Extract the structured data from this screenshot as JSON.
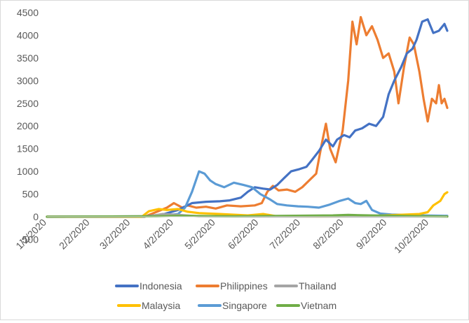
{
  "chart_data": {
    "type": "line",
    "title": "",
    "xlabel": "",
    "ylabel": "",
    "ylim": [
      -500,
      4500
    ],
    "yticks": [
      -500,
      0,
      500,
      1000,
      1500,
      2000,
      2500,
      3000,
      3500,
      4000,
      4500
    ],
    "ytick_labels": [
      "-500",
      "0",
      "500",
      "1000",
      "1500",
      "2000",
      "2500",
      "3000",
      "3500",
      "4000",
      "4500"
    ],
    "x_range": [
      "1/2/2020",
      "10/15/2020"
    ],
    "xtick_labels": [
      "1/2/2020",
      "2/2/2020",
      "3/2/2020",
      "4/2/2020",
      "5/2/2020",
      "6/2/2020",
      "7/2/2020",
      "8/2/2020",
      "9/2/2020",
      "10/2/2020"
    ],
    "grid": false,
    "legend_position": "bottom",
    "series": [
      {
        "name": "Indonesia",
        "color": "#4472C4",
        "points": [
          [
            "1/2/2020",
            0
          ],
          [
            "3/10/2020",
            0
          ],
          [
            "3/25/2020",
            50
          ],
          [
            "4/5/2020",
            150
          ],
          [
            "4/15/2020",
            300
          ],
          [
            "4/25/2020",
            330
          ],
          [
            "5/5/2020",
            340
          ],
          [
            "5/12/2020",
            360
          ],
          [
            "5/20/2020",
            420
          ],
          [
            "5/25/2020",
            550
          ],
          [
            "5/30/2020",
            650
          ],
          [
            "6/5/2020",
            620
          ],
          [
            "6/10/2020",
            600
          ],
          [
            "6/15/2020",
            700
          ],
          [
            "6/20/2020",
            850
          ],
          [
            "6/25/2020",
            1000
          ],
          [
            "7/1/2020",
            1050
          ],
          [
            "7/6/2020",
            1100
          ],
          [
            "7/10/2020",
            1250
          ],
          [
            "7/15/2020",
            1450
          ],
          [
            "7/20/2020",
            1700
          ],
          [
            "7/25/2020",
            1550
          ],
          [
            "7/28/2020",
            1700
          ],
          [
            "8/2/2020",
            1800
          ],
          [
            "8/6/2020",
            1750
          ],
          [
            "8/10/2020",
            1900
          ],
          [
            "8/15/2020",
            1950
          ],
          [
            "8/20/2020",
            2050
          ],
          [
            "8/25/2020",
            2000
          ],
          [
            "8/30/2020",
            2200
          ],
          [
            "9/3/2020",
            2700
          ],
          [
            "9/7/2020",
            3000
          ],
          [
            "9/12/2020",
            3300
          ],
          [
            "9/16/2020",
            3600
          ],
          [
            "9/20/2020",
            3700
          ],
          [
            "9/23/2020",
            3900
          ],
          [
            "9/27/2020",
            4300
          ],
          [
            "10/1/2020",
            4350
          ],
          [
            "10/5/2020",
            4050
          ],
          [
            "10/9/2020",
            4100
          ],
          [
            "10/13/2020",
            4250
          ],
          [
            "10/15/2020",
            4100
          ]
        ]
      },
      {
        "name": "Philippines",
        "color": "#ED7D31",
        "points": [
          [
            "1/2/2020",
            0
          ],
          [
            "3/12/2020",
            0
          ],
          [
            "3/20/2020",
            100
          ],
          [
            "3/28/2020",
            200
          ],
          [
            "4/2/2020",
            300
          ],
          [
            "4/8/2020",
            200
          ],
          [
            "4/12/2020",
            250
          ],
          [
            "4/18/2020",
            200
          ],
          [
            "4/25/2020",
            220
          ],
          [
            "5/2/2020",
            180
          ],
          [
            "5/10/2020",
            250
          ],
          [
            "5/20/2020",
            230
          ],
          [
            "5/30/2020",
            250
          ],
          [
            "6/4/2020",
            300
          ],
          [
            "6/8/2020",
            550
          ],
          [
            "6/12/2020",
            680
          ],
          [
            "6/16/2020",
            580
          ],
          [
            "6/22/2020",
            600
          ],
          [
            "6/28/2020",
            550
          ],
          [
            "7/3/2020",
            650
          ],
          [
            "7/8/2020",
            800
          ],
          [
            "7/13/2020",
            950
          ],
          [
            "7/17/2020",
            1600
          ],
          [
            "7/20/2020",
            2050
          ],
          [
            "7/23/2020",
            1500
          ],
          [
            "7/27/2020",
            1200
          ],
          [
            "8/1/2020",
            1900
          ],
          [
            "8/5/2020",
            3000
          ],
          [
            "8/8/2020",
            4300
          ],
          [
            "8/11/2020",
            3800
          ],
          [
            "8/14/2020",
            4400
          ],
          [
            "8/18/2020",
            4000
          ],
          [
            "8/22/2020",
            4200
          ],
          [
            "8/26/2020",
            3900
          ],
          [
            "8/30/2020",
            3500
          ],
          [
            "9/3/2020",
            3600
          ],
          [
            "9/7/2020",
            3200
          ],
          [
            "9/10/2020",
            2500
          ],
          [
            "9/14/2020",
            3300
          ],
          [
            "9/18/2020",
            3950
          ],
          [
            "9/21/2020",
            3800
          ],
          [
            "9/25/2020",
            3200
          ],
          [
            "9/28/2020",
            2600
          ],
          [
            "10/1/2020",
            2100
          ],
          [
            "10/4/2020",
            2600
          ],
          [
            "10/7/2020",
            2500
          ],
          [
            "10/9/2020",
            2900
          ],
          [
            "10/11/2020",
            2500
          ],
          [
            "10/13/2020",
            2600
          ],
          [
            "10/15/2020",
            2400
          ]
        ]
      },
      {
        "name": "Thailand",
        "color": "#A5A5A5",
        "points": [
          [
            "1/2/2020",
            0
          ],
          [
            "3/15/2020",
            10
          ],
          [
            "3/25/2020",
            60
          ],
          [
            "4/5/2020",
            40
          ],
          [
            "4/20/2020",
            10
          ],
          [
            "6/1/2020",
            5
          ],
          [
            "10/15/2020",
            5
          ]
        ]
      },
      {
        "name": "Malaysia",
        "color": "#FFC000",
        "points": [
          [
            "1/2/2020",
            0
          ],
          [
            "3/10/2020",
            0
          ],
          [
            "3/15/2020",
            120
          ],
          [
            "3/22/2020",
            170
          ],
          [
            "3/28/2020",
            150
          ],
          [
            "4/5/2020",
            170
          ],
          [
            "4/12/2020",
            110
          ],
          [
            "4/20/2020",
            80
          ],
          [
            "5/5/2020",
            60
          ],
          [
            "5/25/2020",
            30
          ],
          [
            "6/5/2020",
            60
          ],
          [
            "6/15/2020",
            10
          ],
          [
            "7/15/2020",
            5
          ],
          [
            "8/15/2020",
            10
          ],
          [
            "9/10/2020",
            40
          ],
          [
            "9/25/2020",
            60
          ],
          [
            "10/1/2020",
            100
          ],
          [
            "10/5/2020",
            250
          ],
          [
            "10/10/2020",
            350
          ],
          [
            "10/13/2020",
            500
          ],
          [
            "10/15/2020",
            540
          ]
        ]
      },
      {
        "name": "Singapore",
        "color": "#5B9BD5",
        "points": [
          [
            "1/2/2020",
            0
          ],
          [
            "3/20/2020",
            10
          ],
          [
            "4/5/2020",
            60
          ],
          [
            "4/10/2020",
            200
          ],
          [
            "4/15/2020",
            550
          ],
          [
            "4/20/2020",
            1000
          ],
          [
            "4/24/2020",
            950
          ],
          [
            "4/28/2020",
            800
          ],
          [
            "5/2/2020",
            720
          ],
          [
            "5/8/2020",
            650
          ],
          [
            "5/15/2020",
            750
          ],
          [
            "5/22/2020",
            700
          ],
          [
            "5/28/2020",
            650
          ],
          [
            "6/3/2020",
            500
          ],
          [
            "6/10/2020",
            380
          ],
          [
            "6/15/2020",
            280
          ],
          [
            "6/22/2020",
            250
          ],
          [
            "6/30/2020",
            230
          ],
          [
            "7/7/2020",
            220
          ],
          [
            "7/15/2020",
            200
          ],
          [
            "7/22/2020",
            260
          ],
          [
            "7/30/2020",
            350
          ],
          [
            "8/5/2020",
            400
          ],
          [
            "8/10/2020",
            300
          ],
          [
            "8/14/2020",
            280
          ],
          [
            "8/18/2020",
            350
          ],
          [
            "8/22/2020",
            150
          ],
          [
            "8/28/2020",
            70
          ],
          [
            "9/5/2020",
            50
          ],
          [
            "9/15/2020",
            40
          ],
          [
            "9/25/2020",
            30
          ],
          [
            "10/15/2020",
            20
          ]
        ]
      },
      {
        "name": "Vietnam",
        "color": "#70AD47",
        "points": [
          [
            "1/2/2020",
            0
          ],
          [
            "3/20/2020",
            10
          ],
          [
            "4/5/2020",
            20
          ],
          [
            "5/15/2020",
            10
          ],
          [
            "7/25/2020",
            30
          ],
          [
            "8/5/2020",
            40
          ],
          [
            "8/20/2020",
            30
          ],
          [
            "10/15/2020",
            5
          ]
        ]
      }
    ],
    "legend": [
      "Indonesia",
      "Philippines",
      "Thailand",
      "Malaysia",
      "Singapore",
      "Vietnam"
    ]
  }
}
